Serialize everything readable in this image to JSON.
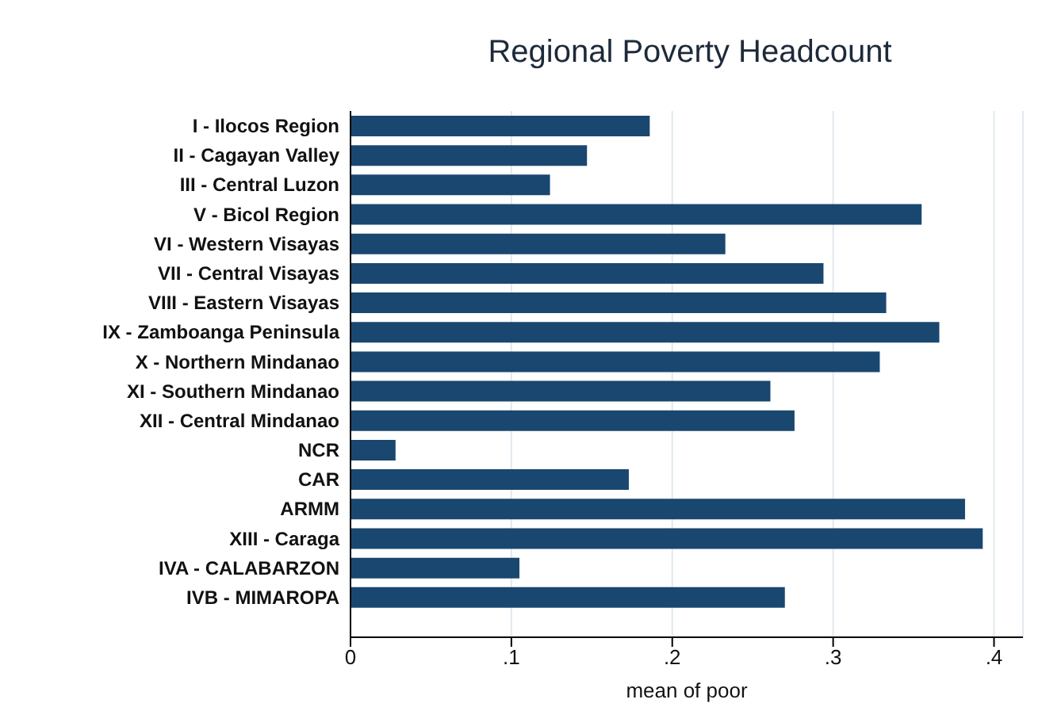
{
  "chart_data": {
    "type": "bar",
    "orientation": "horizontal",
    "title": "Regional Poverty Headcount",
    "xlabel": "mean of poor",
    "categories": [
      "I - Ilocos Region",
      "II - Cagayan Valley",
      "III - Central Luzon",
      "V - Bicol Region",
      "VI - Western Visayas",
      "VII - Central Visayas",
      "VIII - Eastern Visayas",
      "IX -  Zamboanga Peninsula",
      "X - Northern Mindanao",
      "XI - Southern Mindanao",
      "XII - Central Mindanao",
      "NCR",
      "CAR",
      "ARMM",
      "XIII - Caraga",
      "IVA - CALABARZON",
      "IVB - MIMAROPA"
    ],
    "values": [
      0.186,
      0.147,
      0.124,
      0.355,
      0.233,
      0.294,
      0.333,
      0.366,
      0.329,
      0.261,
      0.276,
      0.028,
      0.173,
      0.382,
      0.393,
      0.105,
      0.27
    ],
    "color": "#1a476f",
    "xlim": [
      0,
      0.418
    ],
    "xticks": [
      {
        "value": 0,
        "label": "0"
      },
      {
        "value": 0.1,
        "label": ".1"
      },
      {
        "value": 0.2,
        "label": ".2"
      },
      {
        "value": 0.3,
        "label": ".3"
      },
      {
        "value": 0.4,
        "label": ".4"
      }
    ],
    "grid": "x",
    "legend": false
  }
}
